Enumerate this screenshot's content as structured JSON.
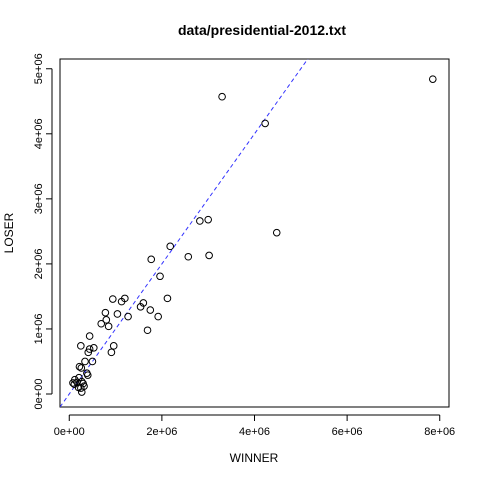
{
  "chart_data": {
    "type": "scatter",
    "title": "data/presidential-2012.txt",
    "xlabel": "WINNER",
    "ylabel": "LOSER",
    "xlim": [
      -200000,
      8200000
    ],
    "ylim": [
      -200000,
      5150000
    ],
    "xticks": [
      0,
      2000000,
      4000000,
      6000000,
      8000000
    ],
    "xtick_labels": [
      "0e+00",
      "2e+06",
      "4e+06",
      "6e+06",
      "8e+06"
    ],
    "yticks": [
      0,
      1000000,
      2000000,
      3000000,
      4000000,
      5000000
    ],
    "ytick_labels": [
      "0e+00",
      "1e+06",
      "2e+06",
      "3e+06",
      "4e+06",
      "5e+06"
    ],
    "reference_line": {
      "slope": 1,
      "intercept": 0,
      "color": "#3333ff",
      "style": "dashed"
    },
    "marker": "open-circle",
    "points": [
      [
        7850000,
        4840000
      ],
      [
        3300000,
        4570000
      ],
      [
        4230000,
        4160000
      ],
      [
        4480000,
        2480000
      ],
      [
        3000000,
        2680000
      ],
      [
        2820000,
        2660000
      ],
      [
        2180000,
        2270000
      ],
      [
        1770000,
        2070000
      ],
      [
        2570000,
        2110000
      ],
      [
        3020000,
        2130000
      ],
      [
        1960000,
        1810000
      ],
      [
        2120000,
        1470000
      ],
      [
        1540000,
        1340000
      ],
      [
        1600000,
        1400000
      ],
      [
        1750000,
        1290000
      ],
      [
        1920000,
        1190000
      ],
      [
        1690000,
        980000
      ],
      [
        1200000,
        1470000
      ],
      [
        1130000,
        1420000
      ],
      [
        940000,
        1460000
      ],
      [
        780000,
        1250000
      ],
      [
        1040000,
        1230000
      ],
      [
        1270000,
        1190000
      ],
      [
        800000,
        1140000
      ],
      [
        690000,
        1080000
      ],
      [
        850000,
        1040000
      ],
      [
        440000,
        890000
      ],
      [
        250000,
        740000
      ],
      [
        530000,
        710000
      ],
      [
        440000,
        690000
      ],
      [
        960000,
        740000
      ],
      [
        910000,
        640000
      ],
      [
        410000,
        640000
      ],
      [
        340000,
        500000
      ],
      [
        500000,
        500000
      ],
      [
        220000,
        420000
      ],
      [
        260000,
        400000
      ],
      [
        380000,
        320000
      ],
      [
        400000,
        290000
      ],
      [
        210000,
        250000
      ],
      [
        120000,
        220000
      ],
      [
        170000,
        180000
      ],
      [
        80000,
        170000
      ],
      [
        110000,
        150000
      ],
      [
        270000,
        190000
      ],
      [
        300000,
        160000
      ],
      [
        320000,
        120000
      ],
      [
        250000,
        90000
      ],
      [
        200000,
        100000
      ],
      [
        270000,
        30000
      ]
    ],
    "grid": false,
    "legend": "none"
  }
}
